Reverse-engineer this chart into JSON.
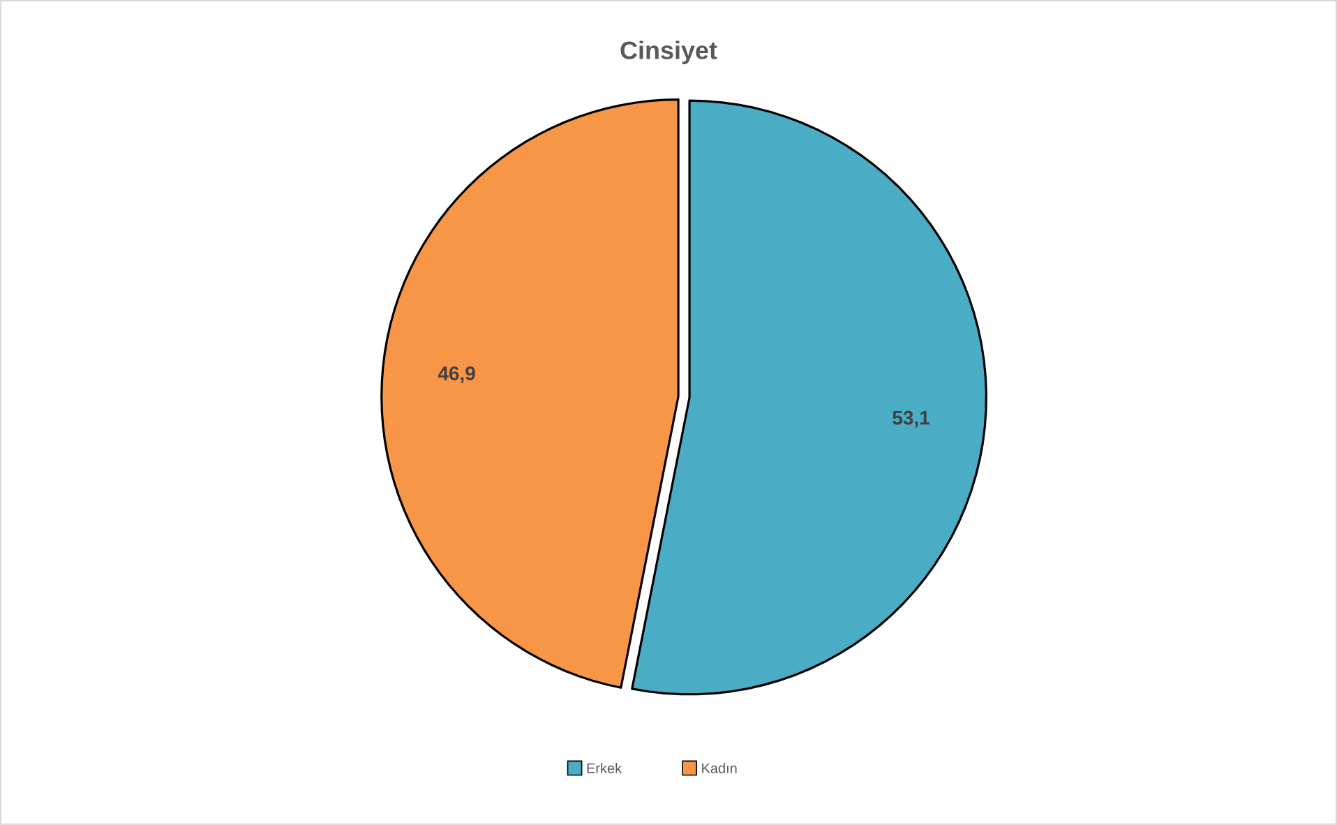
{
  "chart_data": {
    "type": "pie",
    "title": "Cinsiyet",
    "categories": [
      "Erkek",
      "Kadın"
    ],
    "values": [
      53.1,
      46.9
    ],
    "colors": [
      "#4bacc6",
      "#f79646"
    ],
    "value_labels": [
      "53,1",
      "46,9"
    ],
    "legend": "bottom"
  }
}
